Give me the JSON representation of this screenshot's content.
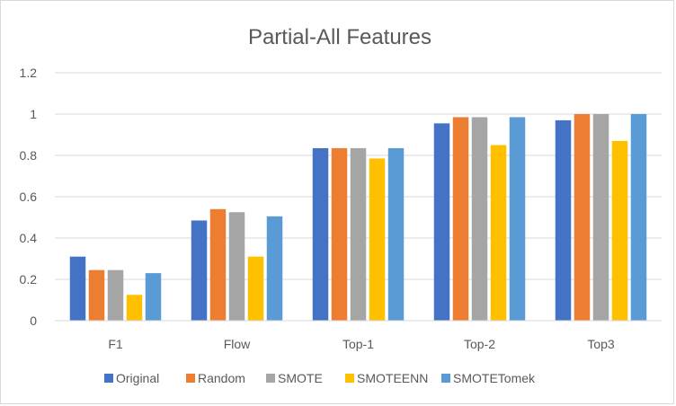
{
  "chart_data": {
    "type": "bar",
    "title": "Partial-All Features",
    "xlabel": "",
    "ylabel": "",
    "categories": [
      "F1",
      "Flow",
      "Top-1",
      "Top-2",
      "Top3"
    ],
    "series": [
      {
        "name": "Original",
        "color": "#4472C4",
        "values": [
          0.31,
          0.485,
          0.835,
          0.955,
          0.97
        ]
      },
      {
        "name": "Random",
        "color": "#ED7D31",
        "values": [
          0.245,
          0.54,
          0.835,
          0.985,
          1.0
        ]
      },
      {
        "name": "SMOTE",
        "color": "#A5A5A5",
        "values": [
          0.245,
          0.525,
          0.835,
          0.985,
          1.0
        ]
      },
      {
        "name": "SMOTEENN",
        "color": "#FFC000",
        "values": [
          0.125,
          0.31,
          0.785,
          0.85,
          0.87
        ]
      },
      {
        "name": "SMOTETomek",
        "color": "#5B9BD5",
        "values": [
          0.23,
          0.505,
          0.835,
          0.985,
          1.0
        ]
      }
    ],
    "ylim": [
      0,
      1.2
    ],
    "yticks": [
      0,
      0.2,
      0.4,
      0.6,
      0.8,
      1,
      1.2
    ],
    "ytick_labels": [
      "0",
      "0.2",
      "0.4",
      "0.6",
      "0.8",
      "1",
      "1.2"
    ],
    "grid": true,
    "legend_position": "bottom"
  }
}
